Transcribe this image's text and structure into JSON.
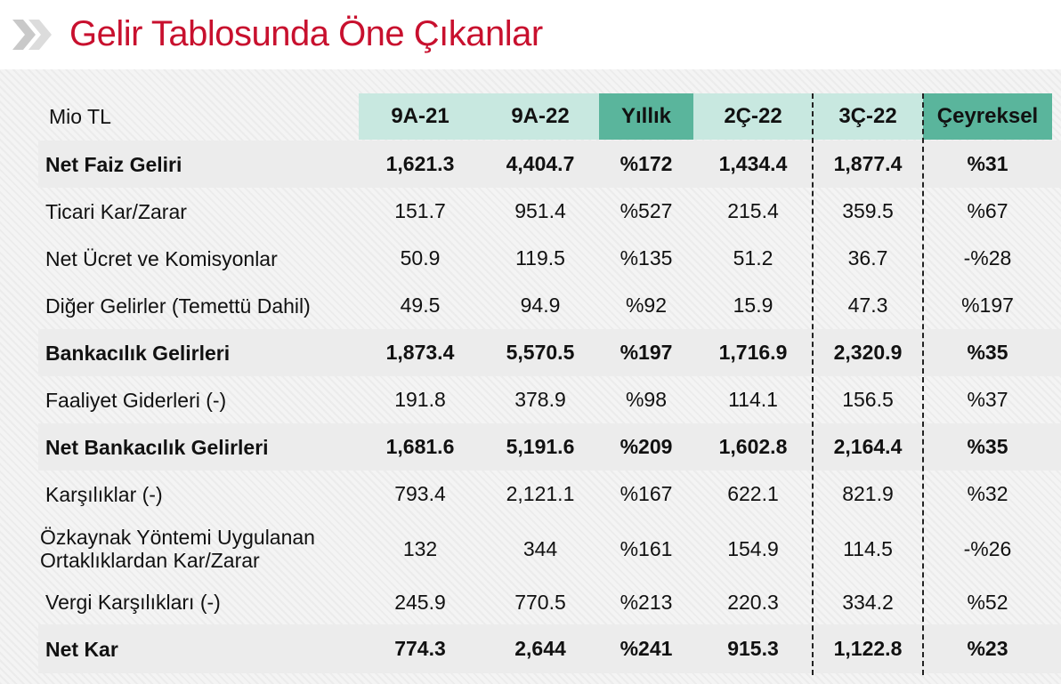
{
  "header": {
    "title": "Gelir Tablosunda Öne Çıkanlar"
  },
  "table": {
    "unit_label": "Mio TL",
    "columns": [
      "9A-21",
      "9A-22",
      "Yıllık",
      "2Ç-22",
      "3Ç-22",
      "Çeyreksel"
    ],
    "rows": [
      {
        "label": "Net Faiz Geliri",
        "bold": true,
        "values": [
          "1,621.3",
          "4,404.7",
          "%172",
          "1,434.4",
          "1,877.4",
          "%31"
        ]
      },
      {
        "label": "Ticari Kar/Zarar",
        "bold": false,
        "values": [
          "151.7",
          "951.4",
          "%527",
          "215.4",
          "359.5",
          "%67"
        ]
      },
      {
        "label": "Net Ücret ve Komisyonlar",
        "bold": false,
        "values": [
          "50.9",
          "119.5",
          "%135",
          "51.2",
          "36.7",
          "-%28"
        ]
      },
      {
        "label": "Diğer Gelirler (Temettü Dahil)",
        "bold": false,
        "values": [
          "49.5",
          "94.9",
          "%92",
          "15.9",
          "47.3",
          "%197"
        ]
      },
      {
        "label": "Bankacılık Gelirleri",
        "bold": true,
        "values": [
          "1,873.4",
          "5,570.5",
          "%197",
          "1,716.9",
          "2,320.9",
          "%35"
        ]
      },
      {
        "label": "Faaliyet Giderleri (-)",
        "bold": false,
        "values": [
          "191.8",
          "378.9",
          "%98",
          "114.1",
          "156.5",
          "%37"
        ]
      },
      {
        "label": "Net Bankacılık Gelirleri",
        "bold": true,
        "values": [
          "1,681.6",
          "5,191.6",
          "%209",
          "1,602.8",
          "2,164.4",
          "%35"
        ]
      },
      {
        "label": "Karşılıklar (-)",
        "bold": false,
        "values": [
          "793.4",
          "2,121.1",
          "%167",
          "622.1",
          "821.9",
          "%32"
        ]
      },
      {
        "label": "Özkaynak Yöntemi Uygulanan Ortaklıklardan Kar/Zarar",
        "bold": false,
        "values": [
          "132",
          "344",
          "%161",
          "154.9",
          "114.5",
          "-%26"
        ]
      },
      {
        "label": "Vergi Karşılıkları (-)",
        "bold": false,
        "values": [
          "245.9",
          "770.5",
          "%213",
          "220.3",
          "334.2",
          "%52"
        ]
      },
      {
        "label": "Net Kar",
        "bold": true,
        "values": [
          "774.3",
          "2,644",
          "%241",
          "915.3",
          "1,122.8",
          "%23"
        ]
      }
    ]
  }
}
